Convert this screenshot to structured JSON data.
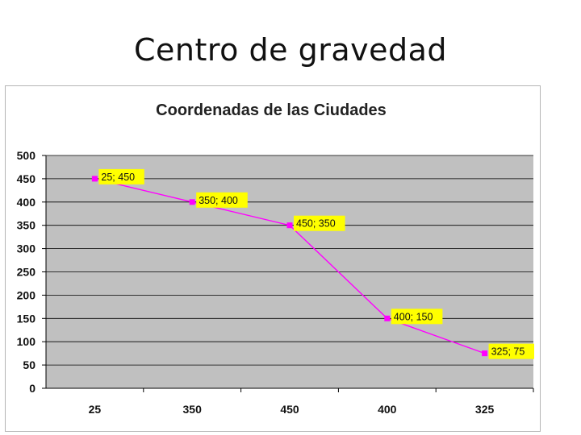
{
  "slide": {
    "title": "Centro de gravedad"
  },
  "chart_data": {
    "type": "line",
    "title": "Coordenadas de las Ciudades",
    "xlabel": "",
    "ylabel": "",
    "categories": [
      "25",
      "350",
      "450",
      "400",
      "325"
    ],
    "series": [
      {
        "values": [
          450,
          400,
          350,
          150,
          75
        ]
      }
    ],
    "data_labels": [
      "25; 450",
      "350; 400",
      "450; 350",
      "400; 150",
      "325; 75"
    ],
    "ylim": [
      0,
      500
    ],
    "yticks": [
      0,
      50,
      100,
      150,
      200,
      250,
      300,
      350,
      400,
      450,
      500
    ],
    "grid": true,
    "legend": "none",
    "colors": {
      "plot_background": "#c0c0c0",
      "gridline": "#000000",
      "line": "#ff00ff",
      "marker": "#ff00ff",
      "label_background": "#ffff00"
    }
  }
}
